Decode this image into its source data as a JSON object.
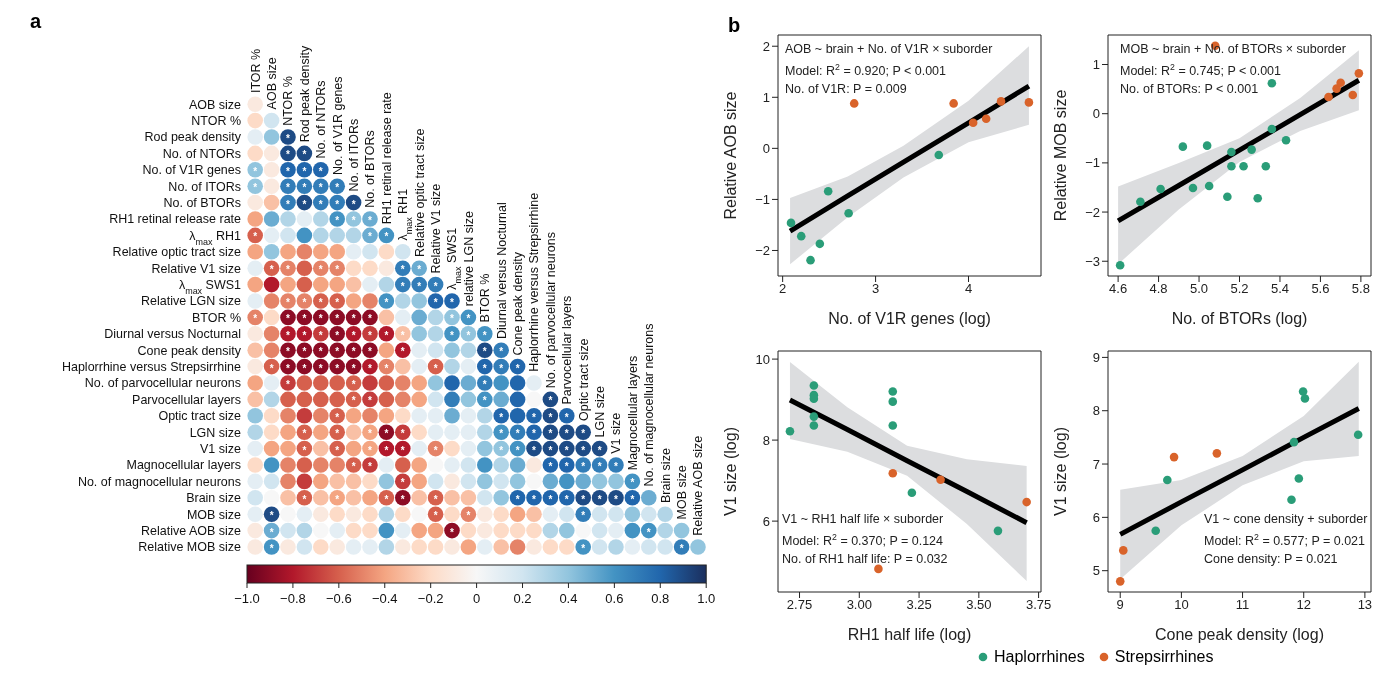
{
  "chart_data": [
    {
      "type": "heatmap",
      "annotations": [
        "a"
      ],
      "categories": [
        "ITOR %",
        "AOB size",
        "NTOR %",
        "Rod peak density",
        "No. of NTORs",
        "No. of V1R genes",
        "No. of ITORs",
        "No. of BTORs",
        "RH1 retinal release rate",
        "λ$_{max}$ RH1",
        "Relative optic tract size",
        "Relative V1 size",
        "λ$_{max}$ SWS1",
        "relative LGN size",
        "BTOR %",
        "Diurnal versus Nocturnal",
        "Cone peak density",
        "Haplorrhine versus Strepsirrhine",
        "No. of parvocellular neurons",
        "Parvocellular layers",
        "Optic tract size",
        "LGN size",
        "V1 size",
        "Magnocellular layers",
        "No. of magnocellular neurons",
        "Brain size",
        "MOB size",
        "Relative AOB size"
      ],
      "y_categories": [
        "AOB size",
        "NTOR %",
        "Rod peak density",
        "No. of NTORs",
        "No. of V1R genes",
        "No. of ITORs",
        "No. of BTORs",
        "RH1 retinal release rate",
        "λ$_{max}$ RH1",
        "Relative optic tract size",
        "Relative V1 size",
        "λ$_{max}$ SWS1",
        "Relative LGN size",
        "BTOR %",
        "Diurnal versus Nocturnal",
        "Cone peak density",
        "Haplorrhine versus Strepsirrhine",
        "No. of parvocellular neurons",
        "Parvocellular layers",
        "Optic tract size",
        "LGN size",
        "V1 size",
        "Magnocellular layers",
        "No. of magnocellular neurons",
        "Brain size",
        "MOB size",
        "Relative AOB size",
        "Relative MOB size"
      ],
      "cells": [
        [
          -0.1,
          null,
          null,
          null,
          null,
          null,
          null,
          null,
          null,
          null,
          null,
          null,
          null,
          null,
          null,
          null,
          null,
          null,
          null,
          null,
          null,
          null,
          null,
          null,
          null,
          null,
          null,
          null
        ],
        [
          -0.2,
          0.2,
          null,
          null,
          null,
          null,
          null,
          null,
          null,
          null,
          null,
          null,
          null,
          null,
          null,
          null,
          null,
          null,
          null,
          null,
          null,
          null,
          null,
          null,
          null,
          null,
          null,
          null
        ],
        [
          0.1,
          0.4,
          0.9,
          null,
          null,
          null,
          null,
          null,
          null,
          null,
          null,
          null,
          null,
          null,
          null,
          null,
          null,
          null,
          null,
          null,
          null,
          null,
          null,
          null,
          null,
          null,
          null,
          null
        ],
        [
          -0.2,
          -0.1,
          0.9,
          0.9,
          null,
          null,
          null,
          null,
          null,
          null,
          null,
          null,
          null,
          null,
          null,
          null,
          null,
          null,
          null,
          null,
          null,
          null,
          null,
          null,
          null,
          null,
          null,
          null
        ],
        [
          0.4,
          -0.1,
          0.8,
          0.8,
          0.8,
          null,
          null,
          null,
          null,
          null,
          null,
          null,
          null,
          null,
          null,
          null,
          null,
          null,
          null,
          null,
          null,
          null,
          null,
          null,
          null,
          null,
          null,
          null
        ],
        [
          0.4,
          -0.1,
          0.7,
          0.7,
          0.7,
          0.7,
          null,
          null,
          null,
          null,
          null,
          null,
          null,
          null,
          null,
          null,
          null,
          null,
          null,
          null,
          null,
          null,
          null,
          null,
          null,
          null,
          null,
          null
        ],
        [
          -0.1,
          -0.3,
          0.7,
          0.9,
          0.7,
          0.7,
          0.9,
          null,
          null,
          null,
          null,
          null,
          null,
          null,
          null,
          null,
          null,
          null,
          null,
          null,
          null,
          null,
          null,
          null,
          null,
          null,
          null,
          null
        ],
        [
          -0.4,
          0.5,
          0.3,
          0.1,
          0.3,
          0.6,
          0.4,
          0.5,
          null,
          null,
          null,
          null,
          null,
          null,
          null,
          null,
          null,
          null,
          null,
          null,
          null,
          null,
          null,
          null,
          null,
          null,
          null,
          null
        ],
        [
          -0.6,
          0.1,
          0.2,
          0.6,
          0.3,
          0.3,
          0.3,
          0.5,
          0.6,
          null,
          null,
          null,
          null,
          null,
          null,
          null,
          null,
          null,
          null,
          null,
          null,
          null,
          null,
          null,
          null,
          null,
          null,
          null
        ],
        [
          -0.4,
          0.4,
          -0.4,
          -0.5,
          -0.4,
          -0.4,
          0.1,
          0.2,
          -0.2,
          0.2,
          null,
          null,
          null,
          null,
          null,
          null,
          null,
          null,
          null,
          null,
          null,
          null,
          null,
          null,
          null,
          null,
          null,
          null
        ],
        [
          0.1,
          -0.6,
          -0.5,
          -0.6,
          -0.5,
          -0.5,
          -0.2,
          -0.2,
          -0.1,
          0.7,
          0.5,
          null,
          null,
          null,
          null,
          null,
          null,
          null,
          null,
          null,
          null,
          null,
          null,
          null,
          null,
          null,
          null,
          null
        ],
        [
          -0.4,
          -0.8,
          -0.4,
          -0.6,
          -0.4,
          -0.4,
          -0.3,
          0.1,
          0.3,
          0.7,
          0.7,
          0.7,
          null,
          null,
          null,
          null,
          null,
          null,
          null,
          null,
          null,
          null,
          null,
          null,
          null,
          null,
          null,
          null
        ],
        [
          0.1,
          -0.5,
          -0.5,
          -0.5,
          -0.6,
          -0.6,
          -0.4,
          -0.5,
          0.6,
          0.3,
          0.4,
          0.8,
          0.8,
          null,
          null,
          null,
          null,
          null,
          null,
          null,
          null,
          null,
          null,
          null,
          null,
          null,
          null,
          null
        ],
        [
          -0.5,
          -0.2,
          -0.9,
          -0.9,
          -0.9,
          -0.9,
          -0.9,
          -0.9,
          -0.3,
          0.1,
          0.5,
          0.3,
          0.4,
          0.6,
          null,
          null,
          null,
          null,
          null,
          null,
          null,
          null,
          null,
          null,
          null,
          null,
          null,
          null
        ],
        [
          -0.1,
          -0.5,
          -0.8,
          -0.8,
          -0.7,
          -0.9,
          -0.8,
          -0.7,
          -0.8,
          -0.3,
          0.4,
          0.3,
          0.6,
          0.4,
          0.6,
          null,
          null,
          null,
          null,
          null,
          null,
          null,
          null,
          null,
          null,
          null,
          null,
          null
        ],
        [
          -0.3,
          -0.5,
          -0.9,
          -0.9,
          -0.9,
          -0.9,
          -0.9,
          -0.9,
          -0.4,
          -0.8,
          0.1,
          0.2,
          0.4,
          0.3,
          0.9,
          0.7,
          null,
          null,
          null,
          null,
          null,
          null,
          null,
          null,
          null,
          null,
          null,
          null
        ],
        [
          -0.1,
          -0.6,
          -0.9,
          -0.9,
          -0.9,
          -0.9,
          -0.9,
          -0.8,
          -0.5,
          -0.3,
          0.1,
          -0.6,
          0.3,
          0.1,
          0.8,
          0.7,
          0.8,
          null,
          null,
          null,
          null,
          null,
          null,
          null,
          null,
          null,
          null,
          null
        ],
        [
          -0.4,
          0.1,
          -0.7,
          -0.6,
          -0.6,
          -0.6,
          -0.6,
          -0.7,
          -0.6,
          -0.5,
          -0.4,
          0.4,
          0.8,
          0.5,
          0.7,
          0.6,
          0.8,
          0.1,
          null,
          null,
          null,
          null,
          null,
          null,
          null,
          null,
          null,
          null
        ],
        [
          -0.3,
          0.3,
          -0.6,
          -0.6,
          -0.6,
          -0.6,
          -0.6,
          -0.7,
          -0.6,
          -0.5,
          -0.4,
          0.2,
          0.7,
          0.4,
          0.6,
          0.5,
          0.8,
          0.0,
          0.9,
          null,
          null,
          null,
          null,
          null,
          null,
          null,
          null,
          null
        ],
        [
          0.4,
          -0.2,
          -0.5,
          -0.7,
          -0.5,
          -0.6,
          -0.4,
          -0.5,
          -0.4,
          -0.2,
          0.1,
          0.1,
          0.5,
          0.1,
          0.3,
          0.8,
          0.8,
          0.8,
          0.9,
          0.8,
          null,
          null,
          null,
          null,
          null,
          null,
          null,
          null
        ],
        [
          0.3,
          -0.2,
          -0.4,
          -0.6,
          -0.4,
          -0.6,
          -0.3,
          -0.4,
          -0.9,
          -0.7,
          -0.2,
          0.1,
          0.1,
          0.1,
          0.3,
          0.6,
          0.7,
          0.8,
          0.9,
          0.9,
          0.9,
          null,
          null,
          null,
          null,
          null,
          null,
          null
        ],
        [
          0.1,
          -0.4,
          -0.4,
          -0.6,
          -0.3,
          -0.6,
          -0.4,
          -0.4,
          -0.8,
          -0.8,
          0.1,
          -0.5,
          -0.2,
          0.1,
          0.4,
          0.4,
          0.6,
          0.9,
          0.9,
          0.9,
          0.9,
          0.9,
          null,
          null,
          null,
          null,
          null,
          null
        ],
        [
          -0.2,
          0.6,
          -0.5,
          -0.6,
          -0.5,
          -0.5,
          -0.6,
          -0.7,
          0.1,
          -0.6,
          -0.4,
          0.0,
          0.1,
          0.2,
          0.6,
          0.3,
          0.5,
          -0.1,
          0.8,
          0.8,
          0.7,
          0.7,
          0.7,
          null,
          null,
          null,
          null,
          null
        ],
        [
          0.1,
          0.2,
          -0.5,
          -0.7,
          -0.4,
          -0.3,
          -0.3,
          -0.2,
          0.4,
          -0.7,
          -0.4,
          0.2,
          -0.1,
          0.2,
          0.4,
          0.2,
          0.4,
          0.0,
          0.5,
          0.6,
          0.5,
          0.4,
          0.4,
          0.6,
          null,
          null,
          null,
          null
        ],
        [
          0.2,
          0.0,
          -0.3,
          -0.6,
          -0.3,
          -0.4,
          -0.3,
          -0.4,
          -0.6,
          -0.9,
          -0.3,
          -0.6,
          -0.3,
          -0.3,
          0.2,
          0.4,
          0.8,
          0.8,
          0.8,
          0.8,
          0.9,
          0.9,
          0.9,
          0.8,
          0.5,
          null,
          null,
          null
        ],
        [
          0.1,
          0.9,
          0.0,
          0.1,
          -0.1,
          -0.2,
          -0.1,
          -0.2,
          0.3,
          -0.2,
          0.0,
          -0.6,
          -0.2,
          -0.5,
          -0.1,
          -0.2,
          -0.4,
          -0.3,
          0.1,
          0.2,
          0.7,
          0.2,
          0.2,
          0.4,
          0.2,
          0.3,
          null,
          null
        ],
        [
          -0.1,
          0.5,
          0.2,
          0.3,
          0.0,
          0.1,
          -0.2,
          -0.2,
          0.6,
          0.1,
          -0.4,
          -0.4,
          -0.9,
          -0.2,
          -0.1,
          -0.2,
          -0.2,
          -0.2,
          0.3,
          0.4,
          0.0,
          0.2,
          0.1,
          0.6,
          0.6,
          0.3,
          0.4,
          null
        ],
        [
          -0.1,
          0.6,
          -0.1,
          0.2,
          -0.2,
          -0.1,
          0.1,
          0.1,
          0.3,
          -0.1,
          -0.2,
          -0.2,
          -0.1,
          -0.4,
          0.1,
          -0.3,
          -0.5,
          -0.1,
          -0.2,
          -0.2,
          0.6,
          0.2,
          0.3,
          0.1,
          0.2,
          0.2,
          0.7,
          0.4
        ]
      ],
      "cell_labels": [
        [
          null,
          null,
          null,
          null,
          null,
          null,
          null,
          null,
          null,
          null,
          null,
          null,
          null,
          null,
          null,
          null,
          null,
          null,
          null,
          null,
          null,
          null,
          null,
          null,
          null,
          null,
          null,
          null
        ],
        [
          null,
          null,
          null,
          null,
          null,
          null,
          null,
          null,
          null,
          null,
          null,
          null,
          null,
          null,
          null,
          null,
          null,
          null,
          null,
          null,
          null,
          null,
          null,
          null,
          null,
          null,
          null,
          null
        ],
        [
          null,
          null,
          "*",
          null,
          null,
          null,
          null,
          null,
          null,
          null,
          null,
          null,
          null,
          null,
          null,
          null,
          null,
          null,
          null,
          null,
          null,
          null,
          null,
          null,
          null,
          null,
          null,
          null
        ],
        [
          null,
          null,
          "*",
          "*",
          null,
          null,
          null,
          null,
          null,
          null,
          null,
          null,
          null,
          null,
          null,
          null,
          null,
          null,
          null,
          null,
          null,
          null,
          null,
          null,
          null,
          null,
          null,
          null
        ],
        [
          "*",
          null,
          "*",
          "*",
          "*",
          null,
          null,
          null,
          null,
          null,
          null,
          null,
          null,
          null,
          null,
          null,
          null,
          null,
          null,
          null,
          null,
          null,
          null,
          null,
          null,
          null,
          null,
          null
        ],
        [
          "*",
          null,
          "*",
          "*",
          "*",
          "*",
          null,
          null,
          null,
          null,
          null,
          null,
          null,
          null,
          null,
          null,
          null,
          null,
          null,
          null,
          null,
          null,
          null,
          null,
          null,
          null,
          null,
          null
        ],
        [
          null,
          null,
          "*",
          "*",
          "*",
          "*",
          "*",
          null,
          null,
          null,
          null,
          null,
          null,
          null,
          null,
          null,
          null,
          null,
          null,
          null,
          null,
          null,
          null,
          null,
          null,
          null,
          null,
          null
        ],
        [
          null,
          null,
          null,
          null,
          null,
          "*",
          "*",
          "*",
          null,
          null,
          null,
          null,
          null,
          null,
          null,
          null,
          null,
          null,
          null,
          null,
          null,
          null,
          null,
          null,
          null,
          null,
          null,
          null
        ],
        [
          "*",
          null,
          null,
          null,
          null,
          null,
          null,
          "*",
          "*",
          null,
          null,
          null,
          null,
          null,
          null,
          null,
          null,
          null,
          null,
          null,
          null,
          null,
          null,
          null,
          null,
          null,
          null,
          null
        ],
        [
          null,
          null,
          null,
          null,
          null,
          null,
          null,
          null,
          null,
          null,
          null,
          null,
          null,
          null,
          null,
          null,
          null,
          null,
          null,
          null,
          null,
          null,
          null,
          null,
          null,
          null,
          null,
          null
        ],
        [
          null,
          "*",
          "*",
          null,
          "*",
          "*",
          null,
          null,
          null,
          "*",
          "*",
          null,
          null,
          null,
          null,
          null,
          null,
          null,
          null,
          null,
          null,
          null,
          null,
          null,
          null,
          null,
          null,
          null
        ],
        [
          null,
          null,
          null,
          null,
          null,
          null,
          null,
          null,
          null,
          "*",
          "*",
          "*",
          null,
          null,
          null,
          null,
          null,
          null,
          null,
          null,
          null,
          null,
          null,
          null,
          null,
          null,
          null,
          null
        ],
        [
          null,
          null,
          "*",
          "*",
          "*",
          "*",
          null,
          null,
          "*",
          null,
          null,
          "*",
          "*",
          null,
          null,
          null,
          null,
          null,
          null,
          null,
          null,
          null,
          null,
          null,
          null,
          null,
          null,
          null
        ],
        [
          "*",
          null,
          "*",
          "*",
          "*",
          "*",
          "*",
          "*",
          null,
          null,
          null,
          null,
          "*",
          "*",
          null,
          null,
          null,
          null,
          null,
          null,
          null,
          null,
          null,
          null,
          null,
          null,
          null,
          null
        ],
        [
          null,
          null,
          "*",
          "*",
          "*",
          "*",
          "*",
          "*",
          "*",
          "*",
          null,
          null,
          "*",
          "*",
          "*",
          null,
          null,
          null,
          null,
          null,
          null,
          null,
          null,
          null,
          null,
          null,
          null,
          null
        ],
        [
          null,
          null,
          "*",
          "*",
          "*",
          "*",
          "*",
          "*",
          null,
          "*",
          null,
          null,
          null,
          null,
          "*",
          "*",
          null,
          null,
          null,
          null,
          null,
          null,
          null,
          null,
          null,
          null,
          null,
          null
        ],
        [
          null,
          "*",
          "*",
          "*",
          "*",
          "*",
          "*",
          "*",
          "*",
          null,
          null,
          "*",
          null,
          null,
          "*",
          "*",
          "*",
          null,
          null,
          null,
          null,
          null,
          null,
          null,
          null,
          null,
          null,
          null
        ],
        [
          null,
          null,
          "*",
          null,
          null,
          null,
          "*",
          null,
          null,
          null,
          null,
          null,
          null,
          null,
          "*",
          null,
          null,
          null,
          null,
          null,
          null,
          null,
          null,
          null,
          null,
          null,
          null,
          null
        ],
        [
          null,
          null,
          null,
          null,
          null,
          null,
          "*",
          "*",
          null,
          null,
          null,
          null,
          null,
          null,
          "*",
          null,
          null,
          null,
          "*",
          null,
          null,
          null,
          null,
          null,
          null,
          null,
          null,
          null
        ],
        [
          null,
          null,
          null,
          null,
          null,
          "*",
          null,
          null,
          null,
          null,
          null,
          null,
          null,
          null,
          null,
          "*",
          null,
          "*",
          "*",
          "*",
          null,
          null,
          null,
          null,
          null,
          null,
          null,
          null
        ],
        [
          null,
          null,
          null,
          "*",
          null,
          "*",
          null,
          "*",
          "*",
          "*",
          null,
          null,
          null,
          null,
          null,
          "*",
          "*",
          "*",
          "*",
          "*",
          "*",
          null,
          null,
          null,
          null,
          null,
          null,
          null
        ],
        [
          null,
          null,
          null,
          "*",
          null,
          "*",
          null,
          "*",
          "*",
          "*",
          null,
          "*",
          null,
          null,
          null,
          "*",
          "*",
          "*",
          "*",
          "*",
          "*",
          "*",
          null,
          null,
          null,
          null,
          null,
          null
        ],
        [
          null,
          null,
          null,
          null,
          null,
          null,
          "*",
          "*",
          null,
          null,
          null,
          null,
          null,
          null,
          null,
          null,
          null,
          null,
          "*",
          "*",
          "*",
          "*",
          "*",
          null,
          null,
          null,
          null,
          null
        ],
        [
          null,
          null,
          null,
          null,
          null,
          null,
          null,
          null,
          null,
          "*",
          null,
          null,
          null,
          null,
          null,
          null,
          null,
          null,
          null,
          null,
          null,
          null,
          null,
          "*",
          null,
          null,
          null,
          null
        ],
        [
          null,
          null,
          null,
          "*",
          null,
          "*",
          null,
          null,
          "*",
          "*",
          null,
          "*",
          null,
          null,
          null,
          null,
          "*",
          "*",
          "*",
          "*",
          "*",
          "*",
          "*",
          "*",
          null,
          null,
          null,
          null
        ],
        [
          null,
          "*",
          null,
          null,
          null,
          null,
          null,
          null,
          null,
          null,
          null,
          "*",
          null,
          "*",
          null,
          null,
          null,
          null,
          null,
          null,
          "*",
          null,
          null,
          null,
          null,
          null,
          null,
          null
        ],
        [
          null,
          "*",
          null,
          null,
          null,
          null,
          null,
          null,
          null,
          null,
          null,
          null,
          "*",
          null,
          null,
          null,
          null,
          null,
          null,
          null,
          null,
          null,
          null,
          null,
          "*",
          null,
          null,
          null
        ],
        [
          null,
          "*",
          null,
          null,
          null,
          null,
          null,
          null,
          null,
          null,
          null,
          null,
          null,
          null,
          null,
          null,
          null,
          null,
          null,
          null,
          "*",
          null,
          null,
          null,
          null,
          null,
          "*",
          null
        ]
      ],
      "clim": [
        -1,
        1
      ],
      "cticks": [
        {
          "value": -1,
          "label": "−1.0"
        },
        {
          "value": -0.8,
          "label": "−0.8"
        },
        {
          "value": -0.6,
          "label": "−0.6"
        },
        {
          "value": -0.4,
          "label": "−0.4"
        },
        {
          "value": -0.2,
          "label": "−0.2"
        },
        0,
        0.2,
        0.4,
        0.6,
        0.8,
        {
          "value": 1,
          "label": "1.0"
        }
      ]
    },
    {
      "type": "scatter",
      "marker": "circle",
      "xlabel": "No. of V1R genes (log)",
      "ylabel": "Relative AOB size",
      "xlim": [
        1.95,
        4.78
      ],
      "ylim": [
        -2.5,
        2.22
      ],
      "xticks": [
        2,
        3,
        4
      ],
      "yticks": [
        {
          "value": -2,
          "label": "−2"
        },
        {
          "value": -1,
          "label": "−1"
        },
        0,
        1,
        2
      ],
      "annotations": [
        "b",
        "AOB ~ brain + No. of V1R × suborder",
        "Model: R$^{2}$  = 0.920; P < 0.001",
        "No. of V1R: P = 0.009"
      ],
      "series": [
        {
          "type": "line",
          "marker": "none",
          "color": "#000000",
          "x": [
            2.08,
            2.7,
            3.3,
            4.0,
            4.65
          ],
          "values": [
            -1.62,
            -0.93,
            -0.27,
            0.5,
            1.22
          ],
          "lower": [
            -2.27,
            -1.35,
            -0.57,
            0.12,
            0.46
          ],
          "upper": [
            -0.97,
            -0.55,
            0.05,
            0.93,
            2.0
          ]
        },
        {
          "color": "#2a9d78",
          "x": [
            2.09,
            2.2,
            2.3,
            2.4,
            2.49,
            2.71,
            3.68
          ],
          "values": [
            -1.46,
            -1.72,
            -2.19,
            -1.87,
            -0.84,
            -1.27,
            -0.13
          ]
        },
        {
          "color": "#d9632a",
          "x": [
            2.77,
            3.84,
            4.05,
            4.19,
            4.35,
            4.65
          ],
          "values": [
            0.88,
            0.88,
            0.5,
            0.58,
            0.92,
            0.9
          ]
        }
      ]
    },
    {
      "type": "scatter",
      "marker": "circle",
      "xlabel": "No. of BTORs (log)",
      "ylabel": "Relative MOB size",
      "xlim": [
        4.55,
        5.85
      ],
      "ylim": [
        -3.3,
        1.6
      ],
      "xticks": [
        4.6,
        4.8,
        {
          "value": 5,
          "label": "5.0"
        },
        5.2,
        5.4,
        5.6,
        5.8
      ],
      "yticks": [
        {
          "value": -3,
          "label": "−3"
        },
        {
          "value": -2,
          "label": "−2"
        },
        {
          "value": -1,
          "label": "−1"
        },
        0,
        1
      ],
      "annotations": [
        "MOB ~ brain + No. of BTORs × suborder",
        "Model: R$^{2}$ = 0.745; P < 0.001",
        "No. of BTORs: P < 0.001"
      ],
      "series": [
        {
          "type": "line",
          "marker": "none",
          "color": "#000000",
          "x": [
            4.6,
            4.9,
            5.2,
            5.5,
            5.79
          ],
          "values": [
            -2.18,
            -1.46,
            -0.74,
            -0.02,
            0.68
          ],
          "lower": [
            -3.06,
            -1.95,
            -0.98,
            -0.35,
            0.07
          ],
          "upper": [
            -1.48,
            -1.0,
            -0.5,
            0.32,
            1.29
          ]
        },
        {
          "color": "#2a9d78",
          "x": [
            4.61,
            4.71,
            4.81,
            4.92,
            4.97,
            5.04,
            5.05,
            5.16,
            5.16,
            5.14,
            5.22,
            5.26,
            5.29,
            5.33,
            5.36,
            5.36,
            5.43
          ],
          "values": [
            -3.08,
            -1.79,
            -1.53,
            -0.67,
            -1.51,
            -0.65,
            -1.47,
            -0.78,
            -1.07,
            -1.69,
            -1.07,
            -0.73,
            -1.72,
            -1.07,
            -0.31,
            0.62,
            -0.54
          ]
        },
        {
          "color": "#d9632a",
          "x": [
            5.08,
            5.64,
            5.68,
            5.7,
            5.76,
            5.79
          ],
          "values": [
            1.38,
            0.34,
            0.51,
            0.63,
            0.38,
            0.82
          ]
        }
      ]
    },
    {
      "type": "scatter",
      "marker": "circle",
      "xlabel": "RH1 half life (log)",
      "ylabel": "V1 size (log)",
      "xlim": [
        2.66,
        3.76
      ],
      "ylim": [
        4.25,
        10.2
      ],
      "xticks": [
        2.75,
        {
          "value": 3,
          "label": "3.00"
        },
        3.25,
        {
          "value": 3.5,
          "label": "3.50"
        },
        3.75
      ],
      "yticks": [
        6,
        8,
        10
      ],
      "annotations": [
        "V1 ~ RH1 half life × suborder",
        "Model: R$^{2}$  = 0.370; P = 0.124",
        "No. of RH1 half life: P = 0.032"
      ],
      "series": [
        {
          "type": "line",
          "marker": "none",
          "color": "#000000",
          "x": [
            2.71,
            2.95,
            3.2,
            3.45,
            3.7
          ],
          "values": [
            8.99,
            8.26,
            7.49,
            6.73,
            5.96
          ],
          "lower": [
            8.03,
            7.71,
            7.12,
            5.93,
            4.52
          ],
          "upper": [
            9.93,
            8.81,
            7.86,
            7.53,
            7.36
          ]
        },
        {
          "color": "#2a9d78",
          "x": [
            2.71,
            2.81,
            2.81,
            2.81,
            2.81,
            2.81,
            3.14,
            3.14,
            3.14,
            3.22,
            3.58
          ],
          "values": [
            8.22,
            9.35,
            9.11,
            9.02,
            8.58,
            8.36,
            9.2,
            8.95,
            8.36,
            6.7,
            5.76
          ]
        },
        {
          "color": "#d9632a",
          "x": [
            3.14,
            3.34,
            3.08,
            3.7
          ],
          "values": [
            7.18,
            7.02,
            4.82,
            6.47
          ]
        }
      ]
    },
    {
      "type": "scatter",
      "marker": "circle",
      "legend": "bottom",
      "xlabel": "Cone peak density (log)",
      "ylabel": "V1 size (log)",
      "xlim": [
        8.8,
        13.1
      ],
      "ylim": [
        4.6,
        9.12
      ],
      "xticks": [
        9,
        10,
        11,
        12,
        13
      ],
      "yticks": [
        5,
        6,
        7,
        8,
        9
      ],
      "annotations": [
        "V1 ~ cone density + suborder",
        "Model: R$^{2}$ = 0.577; P = 0.021",
        "Cone density: P = 0.021"
      ],
      "series": [
        {
          "type": "line",
          "marker": "none",
          "color": "#000000",
          "x": [
            9.0,
            10.0,
            11.0,
            12.0,
            12.9
          ],
          "values": [
            5.68,
            6.29,
            6.89,
            7.5,
            8.04
          ],
          "lower": [
            4.84,
            5.85,
            6.6,
            7.05,
            7.15
          ],
          "upper": [
            6.52,
            6.7,
            7.15,
            7.9,
            8.92
          ]
        },
        {
          "name": "Haplorrhines",
          "color": "#2a9d78",
          "x": [
            9.58,
            9.77,
            11.8,
            11.84,
            11.92,
            11.99,
            12.02,
            12.89
          ],
          "values": [
            5.75,
            6.7,
            6.33,
            7.41,
            6.73,
            8.36,
            8.23,
            7.55
          ]
        },
        {
          "name": "Strepsirrhines",
          "color": "#d9632a",
          "x": [
            9.0,
            9.05,
            9.88,
            10.58
          ],
          "values": [
            4.8,
            5.38,
            7.13,
            7.2
          ]
        }
      ]
    }
  ]
}
